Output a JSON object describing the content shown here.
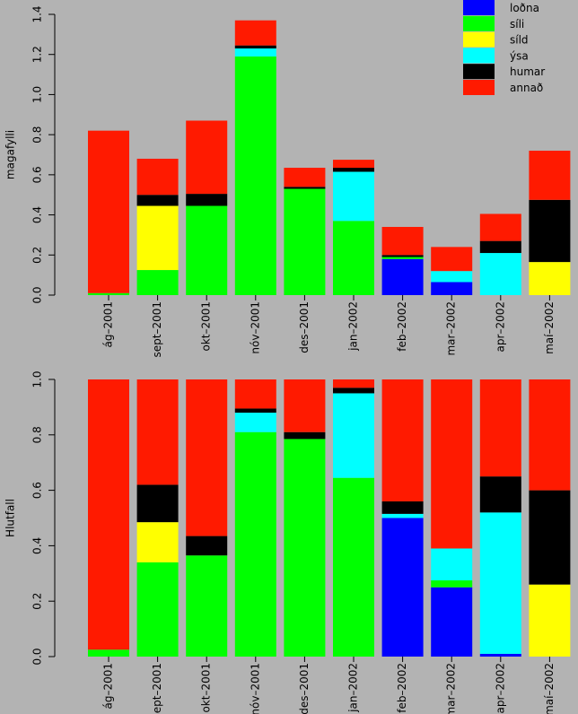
{
  "colors": {
    "background": "#b3b3b3",
    "lodna": "#0000ff",
    "sili": "#00ff00",
    "sild": "#ffff00",
    "ysa": "#00ffff",
    "humar": "#000000",
    "annad": "#ff1a00"
  },
  "chart_data": [
    {
      "type": "bar",
      "stacked": true,
      "title": "",
      "xlabel": "",
      "ylabel": "magafylli",
      "ylim": [
        0,
        1.4
      ],
      "yticks": [
        "0.0",
        "0.2",
        "0.4",
        "0.6",
        "0.8",
        "1.0",
        "1.2",
        "1.4"
      ],
      "legend_position": "top-right",
      "categories": [
        "ág–2001",
        "sept–2001",
        "okt–2001",
        "nóv–2001",
        "des–2001",
        "jan–2002",
        "feb–2002",
        "mar–2002",
        "apr–2002",
        "maí–2002"
      ],
      "series": [
        {
          "name": "loðna",
          "key": "lodna",
          "values": [
            0,
            0,
            0,
            0,
            0,
            0,
            0.18,
            0.065,
            0,
            0
          ]
        },
        {
          "name": "síli",
          "key": "sili",
          "values": [
            0.01,
            0.125,
            0.445,
            1.19,
            0.53,
            0.37,
            0.01,
            0,
            0,
            0
          ]
        },
        {
          "name": "síld",
          "key": "sild",
          "values": [
            0,
            0.32,
            0,
            0,
            0,
            0,
            0,
            0,
            0,
            0.165
          ]
        },
        {
          "name": "ýsa",
          "key": "ysa",
          "values": [
            0,
            0,
            0,
            0.04,
            0,
            0.245,
            0,
            0.055,
            0.21,
            0
          ]
        },
        {
          "name": "humar",
          "key": "humar",
          "values": [
            0,
            0.055,
            0.06,
            0.015,
            0.01,
            0.02,
            0.01,
            0,
            0.06,
            0.31
          ]
        },
        {
          "name": "annað",
          "key": "annad",
          "values": [
            0.81,
            0.18,
            0.365,
            0.125,
            0.095,
            0.04,
            0.14,
            0.12,
            0.135,
            0.245
          ]
        }
      ]
    },
    {
      "type": "bar",
      "stacked": true,
      "title": "",
      "xlabel": "",
      "ylabel": "Hlutfall",
      "ylim": [
        0,
        1.0
      ],
      "yticks": [
        "0.0",
        "0.2",
        "0.4",
        "0.6",
        "0.8",
        "1.0"
      ],
      "categories": [
        "ág–2001",
        "sept–2001",
        "okt–2001",
        "nóv–2001",
        "des–2001",
        "jan–2002",
        "feb–2002",
        "mar–2002",
        "apr–2002",
        "maí–2002"
      ],
      "series": [
        {
          "name": "loðna",
          "key": "lodna",
          "values": [
            0,
            0,
            0,
            0,
            0,
            0,
            0.5,
            0.25,
            0.01,
            0
          ]
        },
        {
          "name": "síli",
          "key": "sili",
          "values": [
            0.025,
            0.34,
            0.365,
            0.81,
            0.785,
            0.645,
            0.0,
            0.025,
            0,
            0
          ]
        },
        {
          "name": "síld",
          "key": "sild",
          "values": [
            0,
            0.145,
            0,
            0,
            0,
            0,
            0,
            0,
            0,
            0.26
          ]
        },
        {
          "name": "ýsa",
          "key": "ysa",
          "values": [
            0,
            0,
            0,
            0.07,
            0,
            0.305,
            0.015,
            0.115,
            0.51,
            0
          ]
        },
        {
          "name": "humar",
          "key": "humar",
          "values": [
            0,
            0.135,
            0.07,
            0.015,
            0.025,
            0.02,
            0.045,
            0,
            0.13,
            0.34
          ]
        },
        {
          "name": "annað",
          "key": "annad",
          "values": [
            0.975,
            0.38,
            0.565,
            0.105,
            0.19,
            0.03,
            0.44,
            0.61,
            0.35,
            0.4
          ]
        }
      ]
    }
  ]
}
